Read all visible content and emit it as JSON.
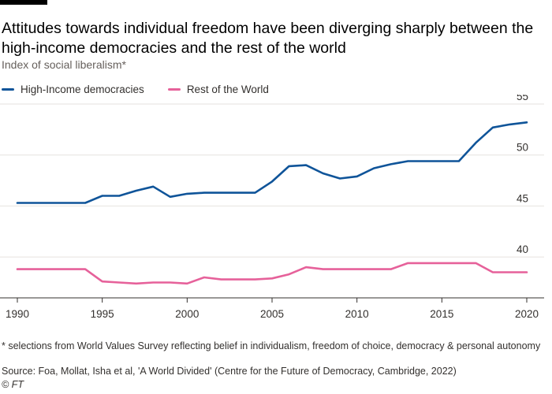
{
  "chart_data": {
    "type": "line",
    "title": "Attitudes towards individual freedom have been diverging sharply between the high-income democracies and the rest of the world",
    "subtitle": "Index of social liberalism*",
    "x": [
      1990,
      1991,
      1992,
      1993,
      1994,
      1995,
      1996,
      1997,
      1998,
      1999,
      2000,
      2001,
      2002,
      2003,
      2004,
      2005,
      2006,
      2007,
      2008,
      2009,
      2010,
      2011,
      2012,
      2013,
      2014,
      2015,
      2016,
      2017,
      2018,
      2019,
      2020
    ],
    "series": [
      {
        "name": "High-Income democracies",
        "color": "#0f5499",
        "values": [
          45.3,
          45.3,
          45.3,
          45.3,
          45.3,
          46.0,
          46.0,
          46.5,
          46.9,
          45.9,
          46.2,
          46.3,
          46.3,
          46.3,
          46.3,
          47.4,
          48.9,
          49.0,
          48.2,
          47.7,
          47.9,
          48.7,
          49.1,
          49.4,
          49.4,
          49.4,
          49.4,
          51.2,
          52.7,
          53.0,
          53.2
        ]
      },
      {
        "name": "Rest of the World",
        "color": "#e6619a",
        "values": [
          38.8,
          38.8,
          38.8,
          38.8,
          38.8,
          37.6,
          37.5,
          37.4,
          37.5,
          37.5,
          37.4,
          38.0,
          37.8,
          37.8,
          37.8,
          37.9,
          38.3,
          39.0,
          38.8,
          38.8,
          38.8,
          38.8,
          38.8,
          39.4,
          39.4,
          39.4,
          39.4,
          39.4,
          38.5,
          38.5,
          38.5
        ]
      }
    ],
    "ylim": [
      36.3,
      55
    ],
    "yticks": [
      40,
      45,
      50,
      55
    ],
    "xticks": [
      1990,
      1995,
      2000,
      2005,
      2010,
      2015,
      2020
    ],
    "xlabel": "",
    "ylabel": "",
    "grid": true,
    "legend": "top-left"
  },
  "footnote": "* selections from World Values Survey reflecting belief in individualism, freedom of choice, democracy & personal autonomy",
  "source": "Source: Foa, Mollat, Isha et al, 'A World Divided' (Centre for the Future of Democracy, Cambridge, 2022)",
  "credit": "© FT",
  "colors": {
    "gridline": "#e6e2df",
    "axis": "#33302e",
    "background": "#ffffff"
  }
}
